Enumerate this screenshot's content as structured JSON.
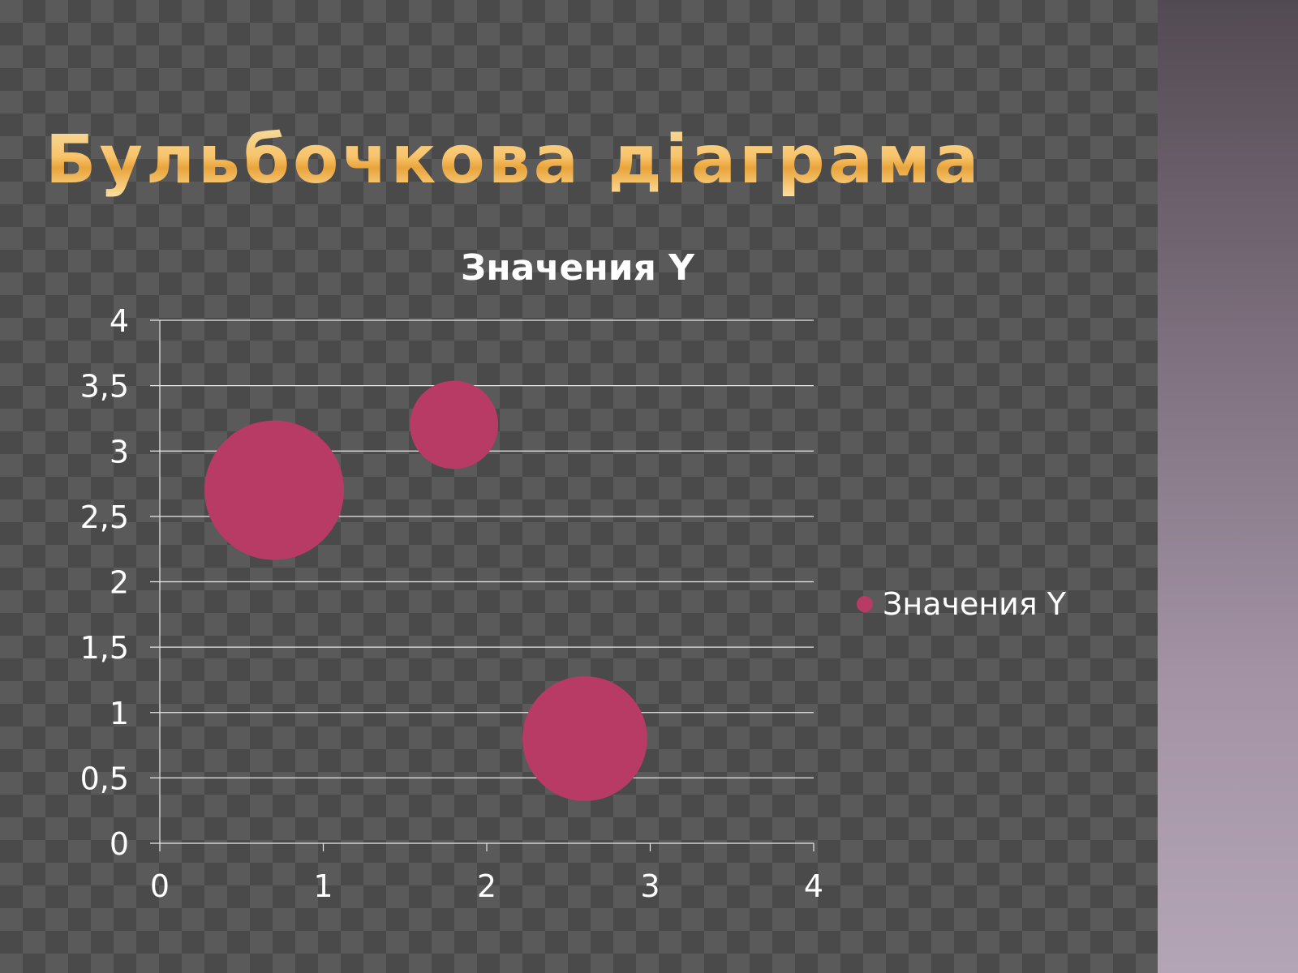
{
  "slide": {
    "title": "Бульбочкова діаграма"
  },
  "colors": {
    "bubble": "#b83b66",
    "gridline": "#e8e8e8",
    "text": "#ffffff",
    "title_gold": "#f8c46b"
  },
  "chart_data": {
    "type": "scatter",
    "subtype": "bubble",
    "title": "Значения Y",
    "xlabel": "",
    "ylabel": "",
    "xlim": [
      0,
      4
    ],
    "ylim": [
      0,
      4
    ],
    "x_ticks": [
      "0",
      "1",
      "2",
      "3",
      "4"
    ],
    "y_ticks": [
      "0",
      "0,5",
      "1",
      "1,5",
      "2",
      "2,5",
      "3",
      "3,5",
      "4"
    ],
    "grid": true,
    "legend": "right",
    "series": [
      {
        "name": "Значения Y",
        "points": [
          {
            "x": 0.7,
            "y": 2.7,
            "size": 10
          },
          {
            "x": 1.8,
            "y": 3.2,
            "size": 4
          },
          {
            "x": 2.6,
            "y": 0.8,
            "size": 8
          }
        ]
      }
    ]
  }
}
